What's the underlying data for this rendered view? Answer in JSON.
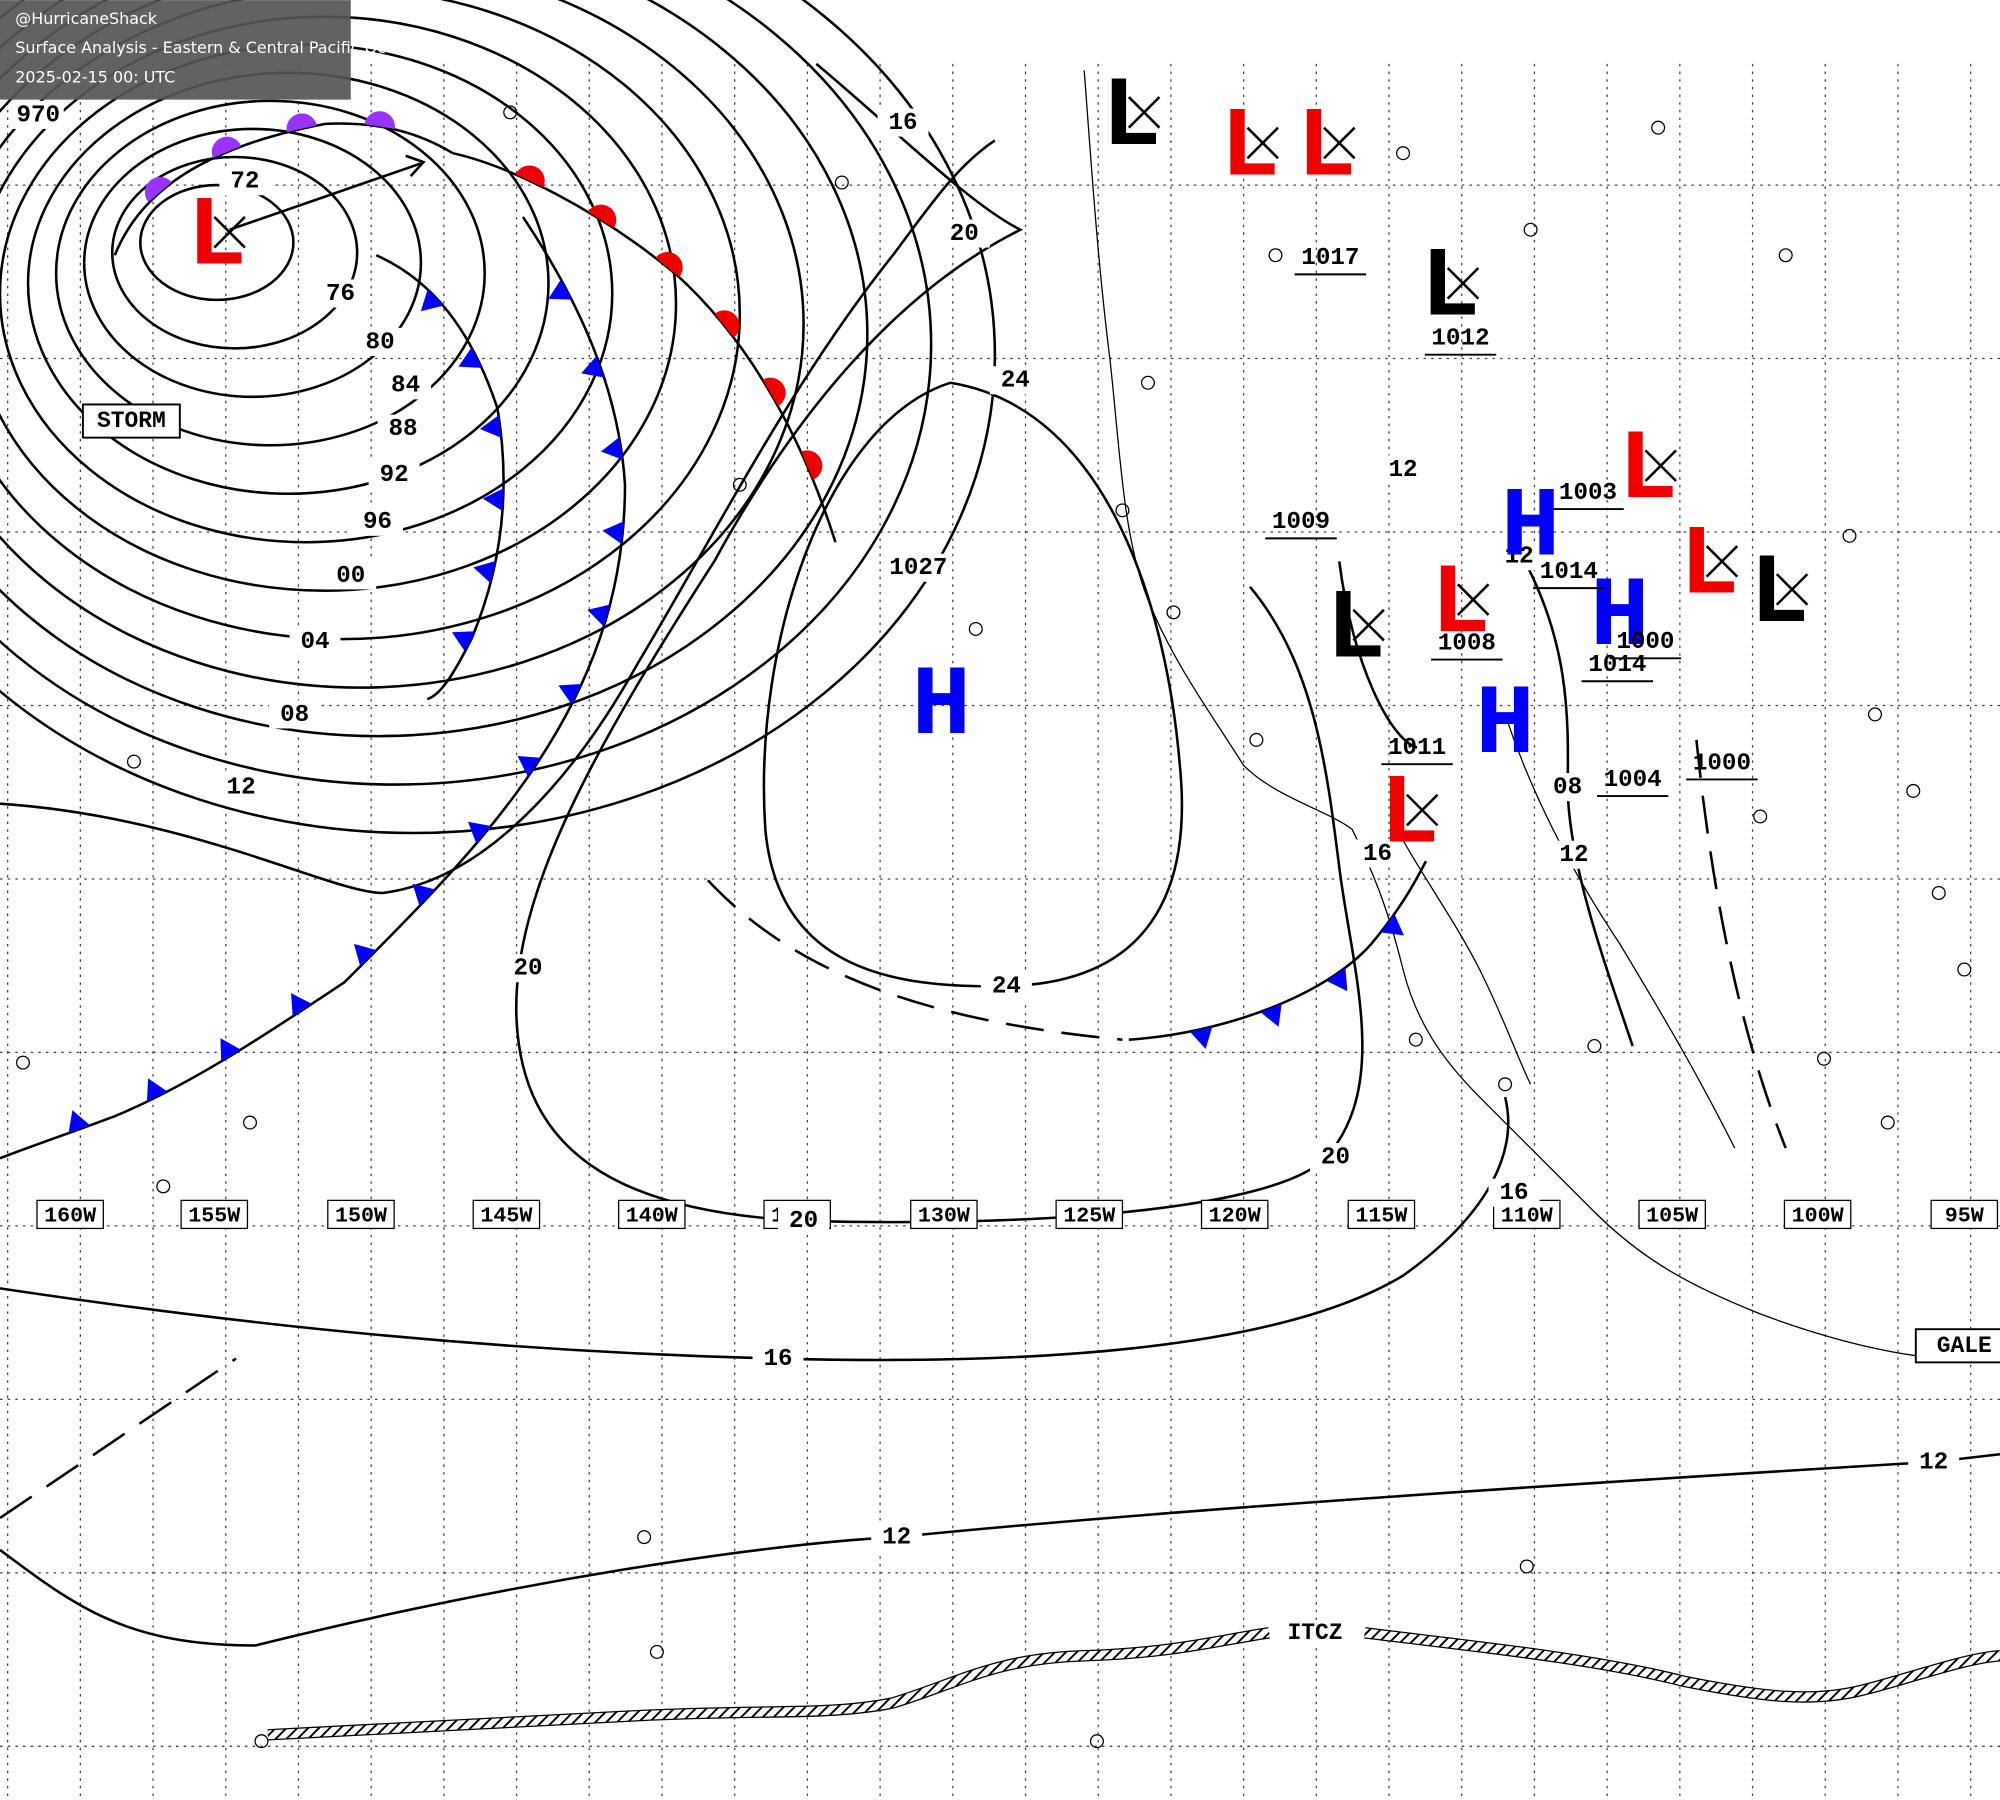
{
  "header": {
    "handle": "@HurricaneShack",
    "title": "Surface Analysis - Eastern & Central Pacific Ocean",
    "timestamp": "2025-02-15 00: UTC"
  },
  "longitude_labels": [
    "160W",
    "155W",
    "150W",
    "145W",
    "140W",
    "135W",
    "130W",
    "125W",
    "120W",
    "115W",
    "110W",
    "105W",
    "100W",
    "95W"
  ],
  "isobar_labels": [
    "970",
    "72",
    "76",
    "80",
    "84",
    "88",
    "92",
    "96",
    "00",
    "04",
    "08",
    "12",
    "16",
    "20",
    "24",
    "1027",
    "24",
    "20",
    "20",
    "20",
    "16",
    "16",
    "12",
    "12",
    "16",
    "12",
    "12",
    "12",
    "08"
  ],
  "pressure_centers": [
    "L",
    "H",
    "L",
    "L",
    "L",
    "L",
    "L",
    "L",
    "L",
    "H",
    "H",
    "H",
    "L",
    "L",
    "L"
  ],
  "center_values": [
    "1017",
    "1012",
    "1009",
    "1003",
    "1014",
    "1000",
    "1008",
    "1014",
    "1011",
    "1004",
    "1000"
  ],
  "boxed_labels": [
    "STORM",
    "GALE"
  ],
  "itcz": "ITCZ"
}
